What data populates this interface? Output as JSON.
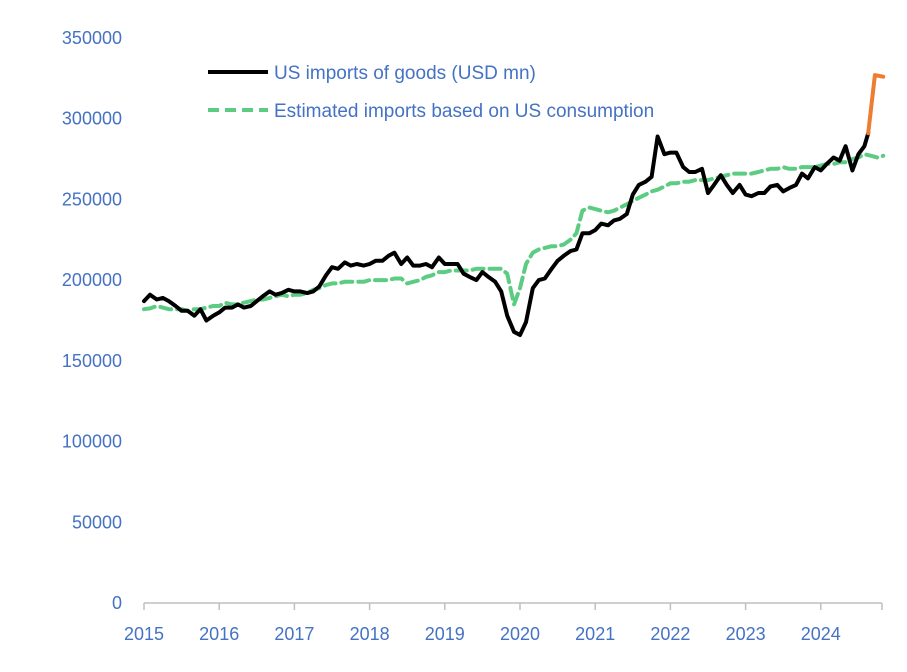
{
  "chart_data": {
    "type": "line",
    "title": "",
    "xlabel": "",
    "ylabel": "",
    "xlim": [
      2015.0,
      2024.85
    ],
    "ylim": [
      0,
      350000
    ],
    "y_ticks": [
      0,
      50000,
      100000,
      150000,
      200000,
      250000,
      300000,
      350000
    ],
    "y_tick_labels": [
      "0",
      "50000",
      "100000",
      "150000",
      "200000",
      "250000",
      "300000",
      "350000"
    ],
    "x_ticks": [
      2015,
      2016,
      2017,
      2018,
      2019,
      2020,
      2021,
      2022,
      2023,
      2024
    ],
    "x_tick_labels": [
      "2015",
      "2016",
      "2017",
      "2018",
      "2019",
      "2020",
      "2021",
      "2022",
      "2023",
      "2024"
    ],
    "grid": false,
    "legend_position": "top",
    "series": [
      {
        "name": "US imports of goods (USD mn)",
        "color": "#000000",
        "style": "solid",
        "points": [
          [
            2015.0,
            187000
          ],
          [
            2015.08,
            191000
          ],
          [
            2015.17,
            188000
          ],
          [
            2015.25,
            189000
          ],
          [
            2015.33,
            187000
          ],
          [
            2015.42,
            184000
          ],
          [
            2015.5,
            181000
          ],
          [
            2015.58,
            181000
          ],
          [
            2015.67,
            178000
          ],
          [
            2015.75,
            182000
          ],
          [
            2015.83,
            175000
          ],
          [
            2015.92,
            178000
          ],
          [
            2016.0,
            180000
          ],
          [
            2016.08,
            183000
          ],
          [
            2016.17,
            183000
          ],
          [
            2016.25,
            185000
          ],
          [
            2016.33,
            183000
          ],
          [
            2016.42,
            184000
          ],
          [
            2016.5,
            187000
          ],
          [
            2016.58,
            190000
          ],
          [
            2016.67,
            193000
          ],
          [
            2016.75,
            191000
          ],
          [
            2016.83,
            192000
          ],
          [
            2016.92,
            194000
          ],
          [
            2017.0,
            193000
          ],
          [
            2017.08,
            193000
          ],
          [
            2017.17,
            192000
          ],
          [
            2017.25,
            193000
          ],
          [
            2017.33,
            196000
          ],
          [
            2017.42,
            203000
          ],
          [
            2017.5,
            208000
          ],
          [
            2017.58,
            207000
          ],
          [
            2017.67,
            211000
          ],
          [
            2017.75,
            209000
          ],
          [
            2017.83,
            210000
          ],
          [
            2017.92,
            209000
          ],
          [
            2018.0,
            210000
          ],
          [
            2018.08,
            212000
          ],
          [
            2018.17,
            212000
          ],
          [
            2018.25,
            215000
          ],
          [
            2018.33,
            217000
          ],
          [
            2018.42,
            210000
          ],
          [
            2018.5,
            214000
          ],
          [
            2018.58,
            209000
          ],
          [
            2018.67,
            209000
          ],
          [
            2018.75,
            210000
          ],
          [
            2018.83,
            208000
          ],
          [
            2018.92,
            214000
          ],
          [
            2019.0,
            210000
          ],
          [
            2019.08,
            210000
          ],
          [
            2019.17,
            210000
          ],
          [
            2019.25,
            204000
          ],
          [
            2019.33,
            202000
          ],
          [
            2019.42,
            200000
          ],
          [
            2019.5,
            205000
          ],
          [
            2019.58,
            202000
          ],
          [
            2019.67,
            199000
          ],
          [
            2019.75,
            193000
          ],
          [
            2019.83,
            178000
          ],
          [
            2019.92,
            168000
          ],
          [
            2020.0,
            166000
          ],
          [
            2020.08,
            174000
          ],
          [
            2020.17,
            195000
          ],
          [
            2020.25,
            200000
          ],
          [
            2020.33,
            201000
          ],
          [
            2020.42,
            207000
          ],
          [
            2020.5,
            212000
          ],
          [
            2020.58,
            215000
          ],
          [
            2020.67,
            218000
          ],
          [
            2020.75,
            219000
          ],
          [
            2020.83,
            229000
          ],
          [
            2020.92,
            229000
          ],
          [
            2021.0,
            231000
          ],
          [
            2021.08,
            235000
          ],
          [
            2021.17,
            234000
          ],
          [
            2021.25,
            237000
          ],
          [
            2021.33,
            238000
          ],
          [
            2021.42,
            241000
          ],
          [
            2021.5,
            253000
          ],
          [
            2021.58,
            259000
          ],
          [
            2021.67,
            261000
          ],
          [
            2021.75,
            264000
          ],
          [
            2021.83,
            289000
          ],
          [
            2021.92,
            278000
          ],
          [
            2022.0,
            279000
          ],
          [
            2022.08,
            279000
          ],
          [
            2022.17,
            270000
          ],
          [
            2022.25,
            267000
          ],
          [
            2022.33,
            267000
          ],
          [
            2022.42,
            269000
          ],
          [
            2022.5,
            254000
          ],
          [
            2022.58,
            259000
          ],
          [
            2022.67,
            265000
          ],
          [
            2022.75,
            259000
          ],
          [
            2022.83,
            254000
          ],
          [
            2022.92,
            259000
          ],
          [
            2023.0,
            253000
          ],
          [
            2023.08,
            252000
          ],
          [
            2023.17,
            254000
          ],
          [
            2023.25,
            254000
          ],
          [
            2023.33,
            258000
          ],
          [
            2023.42,
            259000
          ],
          [
            2023.5,
            255000
          ],
          [
            2023.58,
            257000
          ],
          [
            2023.67,
            259000
          ],
          [
            2023.75,
            266000
          ],
          [
            2023.83,
            263000
          ],
          [
            2023.92,
            270000
          ],
          [
            2024.0,
            268000
          ],
          [
            2024.08,
            272000
          ],
          [
            2024.17,
            276000
          ],
          [
            2024.25,
            274000
          ],
          [
            2024.33,
            283000
          ],
          [
            2024.42,
            268000
          ],
          [
            2024.5,
            278000
          ],
          [
            2024.58,
            283000
          ],
          [
            2024.63,
            291000
          ]
        ]
      },
      {
        "name": "",
        "color": "#ed7d31",
        "style": "solid",
        "points": [
          [
            2024.63,
            291000
          ],
          [
            2024.72,
            327000
          ],
          [
            2024.83,
            326000
          ]
        ]
      },
      {
        "name": "Estimated imports based on US consumption",
        "color": "#5ccc82",
        "style": "dashed",
        "points": [
          [
            2015.0,
            182000
          ],
          [
            2015.08,
            182500
          ],
          [
            2015.17,
            184000
          ],
          [
            2015.25,
            183000
          ],
          [
            2015.33,
            182000
          ],
          [
            2015.42,
            182000
          ],
          [
            2015.5,
            182000
          ],
          [
            2015.58,
            181000
          ],
          [
            2015.67,
            182000
          ],
          [
            2015.75,
            182000
          ],
          [
            2015.83,
            183000
          ],
          [
            2015.92,
            184000
          ],
          [
            2016.0,
            184000
          ],
          [
            2016.08,
            186000
          ],
          [
            2016.17,
            185000
          ],
          [
            2016.25,
            185000
          ],
          [
            2016.33,
            186000
          ],
          [
            2016.42,
            187000
          ],
          [
            2016.5,
            188000
          ],
          [
            2016.58,
            188000
          ],
          [
            2016.67,
            189000
          ],
          [
            2016.75,
            190000
          ],
          [
            2016.83,
            191000
          ],
          [
            2016.92,
            190000
          ],
          [
            2017.0,
            191000
          ],
          [
            2017.08,
            191000
          ],
          [
            2017.17,
            192000
          ],
          [
            2017.25,
            194000
          ],
          [
            2017.33,
            195000
          ],
          [
            2017.42,
            197000
          ],
          [
            2017.5,
            198000
          ],
          [
            2017.58,
            198000
          ],
          [
            2017.67,
            199000
          ],
          [
            2017.75,
            199000
          ],
          [
            2017.83,
            199000
          ],
          [
            2017.92,
            199000
          ],
          [
            2018.0,
            200000
          ],
          [
            2018.08,
            200000
          ],
          [
            2018.17,
            200000
          ],
          [
            2018.25,
            200000
          ],
          [
            2018.33,
            201000
          ],
          [
            2018.42,
            201000
          ],
          [
            2018.5,
            198000
          ],
          [
            2018.58,
            199000
          ],
          [
            2018.67,
            200000
          ],
          [
            2018.75,
            202000
          ],
          [
            2018.83,
            203000
          ],
          [
            2018.92,
            205000
          ],
          [
            2019.0,
            205000
          ],
          [
            2019.08,
            206000
          ],
          [
            2019.17,
            206000
          ],
          [
            2019.25,
            206000
          ],
          [
            2019.33,
            206000
          ],
          [
            2019.42,
            207000
          ],
          [
            2019.5,
            207000
          ],
          [
            2019.58,
            207000
          ],
          [
            2019.67,
            207000
          ],
          [
            2019.75,
            207000
          ],
          [
            2019.83,
            204000
          ],
          [
            2019.92,
            185000
          ],
          [
            2020.0,
            195000
          ],
          [
            2020.08,
            210000
          ],
          [
            2020.17,
            217000
          ],
          [
            2020.25,
            219000
          ],
          [
            2020.33,
            220000
          ],
          [
            2020.42,
            221000
          ],
          [
            2020.5,
            221000
          ],
          [
            2020.58,
            222000
          ],
          [
            2020.67,
            225000
          ],
          [
            2020.75,
            229000
          ],
          [
            2020.83,
            243000
          ],
          [
            2020.92,
            245000
          ],
          [
            2021.0,
            244000
          ],
          [
            2021.08,
            243000
          ],
          [
            2021.17,
            242000
          ],
          [
            2021.25,
            243000
          ],
          [
            2021.33,
            245000
          ],
          [
            2021.42,
            247000
          ],
          [
            2021.5,
            249000
          ],
          [
            2021.58,
            251000
          ],
          [
            2021.67,
            253000
          ],
          [
            2021.75,
            255000
          ],
          [
            2021.83,
            256000
          ],
          [
            2021.92,
            258000
          ],
          [
            2022.0,
            260000
          ],
          [
            2022.08,
            260000
          ],
          [
            2022.17,
            261000
          ],
          [
            2022.25,
            261000
          ],
          [
            2022.33,
            262000
          ],
          [
            2022.42,
            262000
          ],
          [
            2022.5,
            262000
          ],
          [
            2022.58,
            263000
          ],
          [
            2022.67,
            264000
          ],
          [
            2022.75,
            265000
          ],
          [
            2022.83,
            266000
          ],
          [
            2022.92,
            266000
          ],
          [
            2023.0,
            266000
          ],
          [
            2023.08,
            266000
          ],
          [
            2023.17,
            267000
          ],
          [
            2023.25,
            268000
          ],
          [
            2023.33,
            269000
          ],
          [
            2023.42,
            269000
          ],
          [
            2023.5,
            270000
          ],
          [
            2023.58,
            269000
          ],
          [
            2023.67,
            269000
          ],
          [
            2023.75,
            270000
          ],
          [
            2023.83,
            270000
          ],
          [
            2023.92,
            270000
          ],
          [
            2024.0,
            271000
          ],
          [
            2024.08,
            272000
          ],
          [
            2024.17,
            272000
          ],
          [
            2024.25,
            273000
          ],
          [
            2024.33,
            273000
          ],
          [
            2024.42,
            275000
          ],
          [
            2024.5,
            276000
          ],
          [
            2024.58,
            278000
          ],
          [
            2024.67,
            277000
          ],
          [
            2024.75,
            276000
          ],
          [
            2024.83,
            277000
          ]
        ]
      }
    ]
  }
}
